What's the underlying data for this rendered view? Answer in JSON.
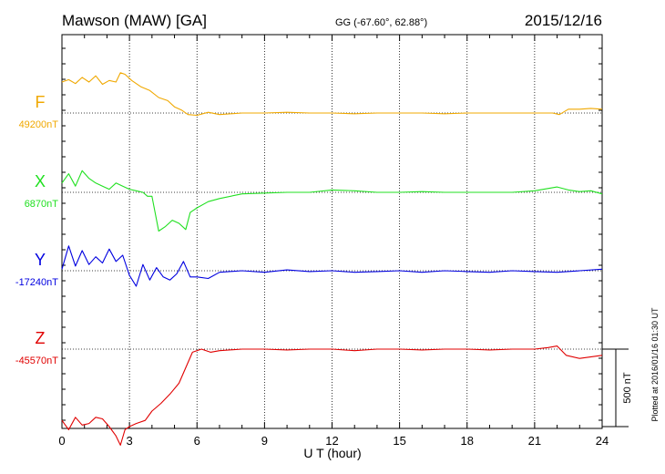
{
  "chart_data": {
    "type": "line",
    "title": "Mawson (MAW)  [GA]",
    "subtitle": "GG (-67.60°,  62.88°)",
    "date": "2015/12/16",
    "xlabel": "U T (hour)",
    "xlim": [
      0,
      24
    ],
    "xticks": [
      "0",
      "3",
      "6",
      "9",
      "12",
      "15",
      "18",
      "21",
      "24"
    ],
    "scale_label": "500 nT",
    "scale_nt": 500,
    "footnote": "Plotted at 2016/01/16 01:30 UT",
    "series": [
      {
        "name": "F",
        "baseline_label": "49200nT",
        "color": "#f0a800",
        "x": [
          0,
          0.3,
          0.6,
          0.9,
          1.2,
          1.5,
          1.8,
          2.1,
          2.4,
          2.6,
          2.8,
          3.1,
          3.5,
          3.9,
          4.3,
          4.7,
          5.0,
          5.3,
          5.6,
          6.0,
          6.5,
          7.0,
          8,
          9,
          10,
          11,
          12,
          13,
          14,
          15,
          16,
          17,
          18,
          19,
          20,
          21,
          21.8,
          22.1,
          22.5,
          23,
          23.5,
          24
        ],
        "y": [
          200,
          215,
          190,
          230,
          200,
          240,
          185,
          210,
          200,
          260,
          250,
          210,
          170,
          145,
          100,
          80,
          40,
          20,
          -10,
          -15,
          5,
          -10,
          0,
          0,
          5,
          0,
          0,
          -5,
          0,
          0,
          0,
          -5,
          0,
          0,
          0,
          0,
          0,
          -10,
          25,
          25,
          30,
          25
        ]
      },
      {
        "name": "X",
        "baseline_label": "6870nT",
        "color": "#20e020",
        "x": [
          0,
          0.3,
          0.6,
          0.9,
          1.2,
          1.5,
          1.8,
          2.1,
          2.4,
          2.7,
          3.0,
          3.3,
          3.6,
          3.8,
          4.0,
          4.3,
          4.6,
          4.9,
          5.2,
          5.5,
          5.7,
          6.0,
          6.5,
          7,
          8,
          9,
          10,
          11,
          12,
          13,
          14,
          15,
          16,
          17,
          18,
          19,
          20,
          21,
          22,
          22.5,
          23,
          23.5,
          24
        ],
        "y": [
          60,
          120,
          40,
          140,
          90,
          60,
          40,
          20,
          60,
          40,
          20,
          10,
          0,
          -25,
          -25,
          -250,
          -220,
          -180,
          -200,
          -240,
          -130,
          -100,
          -60,
          -40,
          -10,
          -5,
          0,
          0,
          15,
          10,
          0,
          0,
          5,
          0,
          0,
          0,
          0,
          10,
          35,
          15,
          5,
          10,
          -10
        ]
      },
      {
        "name": "Y",
        "baseline_label": "-17240nT",
        "color": "#0000e0",
        "x": [
          0,
          0.3,
          0.6,
          0.9,
          1.2,
          1.5,
          1.8,
          2.1,
          2.4,
          2.7,
          3.0,
          3.3,
          3.6,
          3.9,
          4.2,
          4.5,
          4.8,
          5.1,
          5.4,
          5.7,
          6.0,
          6.5,
          7,
          8,
          9,
          10,
          11,
          12,
          13,
          14,
          15,
          16,
          17,
          18,
          19,
          20,
          21,
          22,
          23,
          24
        ],
        "y": [
          10,
          160,
          30,
          130,
          40,
          90,
          50,
          140,
          60,
          100,
          -30,
          -100,
          40,
          -60,
          20,
          -40,
          -60,
          -20,
          60,
          -40,
          -40,
          -50,
          -10,
          0,
          -10,
          5,
          -5,
          0,
          -10,
          -5,
          0,
          -10,
          0,
          -5,
          -10,
          0,
          -5,
          -10,
          0,
          10
        ]
      },
      {
        "name": "Z",
        "baseline_label": "-45570nT",
        "color": "#e00000",
        "x": [
          0,
          0.3,
          0.6,
          0.9,
          1.2,
          1.5,
          1.8,
          2.1,
          2.4,
          2.6,
          2.8,
          3.0,
          3.3,
          3.7,
          4.0,
          4.4,
          4.8,
          5.2,
          5.5,
          5.8,
          6.2,
          6.6,
          7,
          8,
          9,
          10,
          11,
          12,
          13,
          14,
          15,
          16,
          17,
          18,
          19,
          20,
          21,
          21.6,
          22,
          22.4,
          23,
          24
        ],
        "y": [
          -460,
          -520,
          -440,
          -490,
          -480,
          -440,
          -450,
          -500,
          -560,
          -620,
          -520,
          -500,
          -480,
          -460,
          -400,
          -350,
          -290,
          -220,
          -120,
          -20,
          0,
          -20,
          -10,
          0,
          0,
          -5,
          0,
          0,
          -10,
          0,
          0,
          -5,
          0,
          0,
          -5,
          0,
          0,
          10,
          20,
          -40,
          -60,
          -40
        ]
      }
    ],
    "grid": "dotted vertical and baseline lines"
  }
}
